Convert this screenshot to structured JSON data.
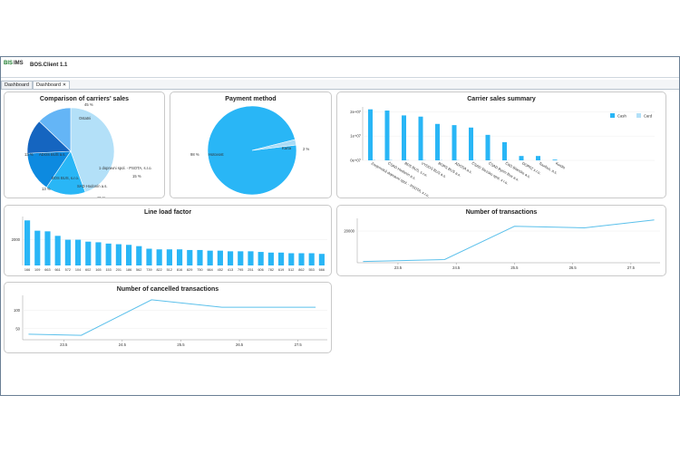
{
  "app": {
    "logo_left": "BIS",
    "logo_right": "IMS",
    "title": "BOS.Client 1.1"
  },
  "tabs": [
    {
      "label": "Dashboard",
      "active": false
    },
    {
      "label": "Dashboard",
      "active": true,
      "close": "✕"
    }
  ],
  "colors": {
    "primary": "#29b6f6",
    "secondary": "#a9dcf7",
    "dark1": "#1565c0",
    "dark2": "#1e88e5",
    "line": "#5bc0eb"
  },
  "charts": {
    "carriers_pie": {
      "title": "Comparison of carriers' sales"
    },
    "payment_pie": {
      "title": "Payment method"
    },
    "carrier_summary": {
      "title": "Carrier sales summary"
    },
    "line_load": {
      "title": "Line load factor"
    },
    "transactions": {
      "title": "Number of transactions"
    },
    "cancelled": {
      "title": "Number of cancelled transactions"
    }
  },
  "chart_data": [
    {
      "type": "pie",
      "title": "Comparison of carriers' sales",
      "slices": [
        {
          "label": "Ostatni",
          "pct_label": "45 %",
          "value": 45,
          "color": "#b3e0f8"
        },
        {
          "label": "1 dopravni spol. - PSOTA, s.r.o.",
          "pct_label": "15 %",
          "value": 15,
          "color": "#29b6f6"
        },
        {
          "label": "SAD Hodonín a.s.",
          "pct_label": "15 %",
          "value": 15,
          "color": "#0d8ae0"
        },
        {
          "label": "BOS BUS, s.r.o.",
          "pct_label": "13 %",
          "value": 13,
          "color": "#1565c0"
        },
        {
          "label": "ADOS BUS a.s.",
          "pct_label": "13 %",
          "value": 13,
          "color": "#64b5f6"
        }
      ]
    },
    {
      "type": "pie",
      "title": "Payment method",
      "slices": [
        {
          "label": "Hotovost",
          "pct_label": "98 %",
          "value": 98,
          "color": "#29b6f6"
        },
        {
          "label": "Karta",
          "pct_label": "2 %",
          "value": 2,
          "color": "#a9dcf7"
        }
      ]
    },
    {
      "type": "bar",
      "title": "Carrier sales summary",
      "yticks": [
        "2e+07",
        "1e+07",
        "0e+07"
      ],
      "ylim": [
        0,
        22000000
      ],
      "legend": [
        {
          "name": "Cash",
          "color": "#29b6f6"
        },
        {
          "name": "Card",
          "color": "#b3e0f8"
        }
      ],
      "legend_position": "top-right",
      "categories": [
        "Znojemská dopravní spol. - PSOTA, s.r.o.",
        "ČSAD Hodonín a.s.",
        "BDS BUS, s.r.o.",
        "VYDOS BUS a.s.",
        "BORS BUS a.s.",
        "ADOSA a.s.",
        "ČSAD Slezsko spol. s r.o.",
        "ČSAD Bytím Bus a.s.",
        "ČAD Blansko a.s.",
        "DOPAZ s.r.o.",
        "Tourbus, a.s.",
        "Kordis"
      ],
      "series": [
        {
          "name": "Cash",
          "values": [
            21000000,
            20500000,
            18500000,
            18000000,
            15000000,
            14500000,
            13500000,
            10500000,
            7500000,
            1800000,
            1800000,
            300000
          ]
        },
        {
          "name": "Card",
          "values": [
            300000,
            300000,
            250000,
            250000,
            200000,
            200000,
            200000,
            150000,
            100000,
            50000,
            50000,
            20000
          ]
        }
      ]
    },
    {
      "type": "bar",
      "title": "Line load factor",
      "yticks": [
        "2000"
      ],
      "ylim": [
        0,
        3800
      ],
      "categories": [
        "166",
        "109",
        "663",
        "661",
        "572",
        "104",
        "602",
        "165",
        "153",
        "201",
        "186",
        "562",
        "739",
        "822",
        "512",
        "816",
        "829",
        "750",
        "664",
        "452",
        "413",
        "795",
        "251",
        "606",
        "782",
        "619",
        "512",
        "862",
        "553",
        "666"
      ],
      "values": [
        3500,
        2700,
        2650,
        2300,
        2000,
        2000,
        1850,
        1800,
        1700,
        1650,
        1600,
        1500,
        1300,
        1250,
        1250,
        1250,
        1200,
        1200,
        1150,
        1150,
        1100,
        1100,
        1100,
        1050,
        1000,
        1000,
        950,
        950,
        950,
        900
      ]
    },
    {
      "type": "line",
      "title": "Number of transactions",
      "x": [
        "23.5",
        "24.5",
        "25.5",
        "26.5",
        "27.5"
      ],
      "xticks": [
        "23.5",
        "24.5",
        "25.5",
        "26.5",
        "27.5"
      ],
      "yticks": [
        "20000"
      ],
      "ylim": [
        0,
        28000
      ],
      "points": [
        [
          22.9,
          800
        ],
        [
          24.3,
          2000
        ],
        [
          25.5,
          23000
        ],
        [
          26.7,
          22000
        ],
        [
          27.9,
          27000
        ]
      ]
    },
    {
      "type": "line",
      "title": "Number of cancelled transactions",
      "x": [
        "23.5",
        "24.5",
        "25.5",
        "26.5",
        "27.5"
      ],
      "xticks": [
        "23.5",
        "24.5",
        "25.5",
        "26.5",
        "27.5"
      ],
      "yticks": [
        "100",
        "50"
      ],
      "ylim": [
        20,
        140
      ],
      "points": [
        [
          22.9,
          35
        ],
        [
          23.8,
          32
        ],
        [
          25.0,
          128
        ],
        [
          26.2,
          108
        ],
        [
          27.8,
          108
        ]
      ]
    }
  ]
}
